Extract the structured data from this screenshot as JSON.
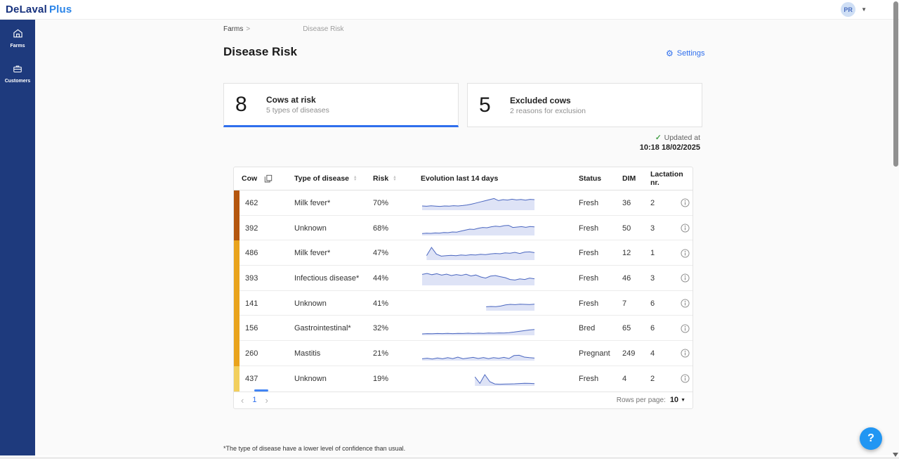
{
  "header": {
    "logo_primary": "DeLaval",
    "logo_accent": "Plus",
    "avatar_initials": "PR"
  },
  "sidebar": {
    "items": [
      {
        "label": "Farms"
      },
      {
        "label": "Customers"
      }
    ]
  },
  "breadcrumb": {
    "root": "Farms",
    "separator": ">",
    "current": "Disease Risk"
  },
  "page": {
    "title": "Disease Risk",
    "settings_label": "Settings"
  },
  "cards": [
    {
      "value": "8",
      "title": "Cows at risk",
      "subtitle": "5 types of diseases"
    },
    {
      "value": "5",
      "title": "Excluded cows",
      "subtitle": "2 reasons for exclusion"
    }
  ],
  "updated": {
    "check": "✓",
    "label": "Updated at",
    "timestamp": "10:18 18/02/2025"
  },
  "table": {
    "columns": [
      "Cow",
      "Type of disease",
      "Risk",
      "Evolution last 14 days",
      "Status",
      "DIM",
      "Lactation nr."
    ],
    "rows": [
      {
        "cow": "462",
        "disease": "Milk fever*",
        "risk": "70%",
        "status": "Fresh",
        "dim": "36",
        "lactation": "2",
        "bar_color": "#b4560e",
        "spark": {
          "x0": 0,
          "values": [
            30,
            28,
            31,
            29,
            27,
            30,
            29,
            32,
            30,
            33,
            37,
            43,
            51,
            59,
            67,
            75,
            83,
            68,
            75,
            72,
            78,
            73,
            76,
            71,
            77,
            75
          ]
        }
      },
      {
        "cow": "392",
        "disease": "Unknown",
        "risk": "68%",
        "status": "Fresh",
        "dim": "50",
        "lactation": "3",
        "bar_color": "#b4560e",
        "spark": {
          "x0": 0,
          "values": [
            14,
            16,
            15,
            18,
            17,
            21,
            20,
            25,
            24,
            31,
            38,
            45,
            43,
            51,
            57,
            55,
            62,
            66,
            63,
            70,
            72,
            57,
            60,
            63,
            58,
            64,
            61
          ]
        }
      },
      {
        "cow": "486",
        "disease": "Milk fever*",
        "risk": "47%",
        "status": "Fresh",
        "dim": "12",
        "lactation": "1",
        "bar_color": "#e9a31c",
        "spark": {
          "x0": 0.04,
          "values": [
            32,
            90,
            42,
            28,
            31,
            34,
            31,
            36,
            34,
            38,
            36,
            41,
            39,
            44,
            47,
            45,
            51,
            49,
            55,
            47,
            57,
            59,
            53
          ]
        }
      },
      {
        "cow": "393",
        "disease": "Infectious disease*",
        "risk": "44%",
        "status": "Fresh",
        "dim": "46",
        "lactation": "3",
        "bar_color": "#e9a31c",
        "spark": {
          "x0": 0,
          "values": [
            78,
            85,
            76,
            83,
            73,
            80,
            70,
            77,
            71,
            79,
            67,
            74,
            60,
            52,
            66,
            70,
            62,
            55,
            42,
            38,
            46,
            42,
            52,
            47
          ]
        }
      },
      {
        "cow": "141",
        "disease": "Unknown",
        "risk": "41%",
        "status": "Fresh",
        "dim": "7",
        "lactation": "6",
        "bar_color": "#e9a31c",
        "spark": {
          "x0": 0.57,
          "values": [
            28,
            30,
            29,
            33,
            41,
            45,
            43,
            46,
            45,
            44,
            46
          ]
        }
      },
      {
        "cow": "156",
        "disease": "Gastrointestinal*",
        "risk": "32%",
        "status": "Bred",
        "dim": "65",
        "lactation": "6",
        "bar_color": "#e9a31c",
        "spark": {
          "x0": 0,
          "values": [
            10,
            12,
            11,
            13,
            12,
            14,
            12,
            14,
            13,
            15,
            13,
            15,
            14,
            16,
            15,
            17,
            16,
            19,
            23,
            28,
            33,
            38,
            41
          ]
        }
      },
      {
        "cow": "260",
        "disease": "Mastitis",
        "risk": "21%",
        "status": "Pregnant",
        "dim": "249",
        "lactation": "4",
        "bar_color": "#e9a31c",
        "spark": {
          "x0": 0,
          "values": [
            13,
            17,
            11,
            19,
            13,
            21,
            14,
            25,
            13,
            18,
            23,
            15,
            22,
            14,
            21,
            16,
            23,
            15,
            36,
            38,
            25,
            21,
            18
          ]
        }
      },
      {
        "cow": "437",
        "disease": "Unknown",
        "risk": "19%",
        "status": "Fresh",
        "dim": "4",
        "lactation": "2",
        "bar_color": "#f2cf5d",
        "spark": {
          "x0": 0.47,
          "values": [
            64,
            18,
            80,
            30,
            14,
            12,
            13,
            14,
            15,
            17,
            19,
            18,
            16
          ]
        }
      }
    ]
  },
  "pagination": {
    "prev": "‹",
    "page": "1",
    "next": "›",
    "rows_per_page_label": "Rows per page:",
    "rows_per_page": "10"
  },
  "footnote": "*The type of disease have a lower level of confidence than usual.",
  "help_label": "?",
  "colors": {
    "accent": "#2f6fed",
    "sidebar": "#1e3a7d",
    "logo_primary": "#16317d",
    "logo_accent": "#2b85e8",
    "spark_line": "#4b67c0",
    "spark_fill": "#dee3f6",
    "risk_high": "#b4560e",
    "risk_medium": "#e9a31c",
    "risk_low": "#f2cf5d",
    "updated_check": "#43a047",
    "help_button": "#2196f3"
  }
}
